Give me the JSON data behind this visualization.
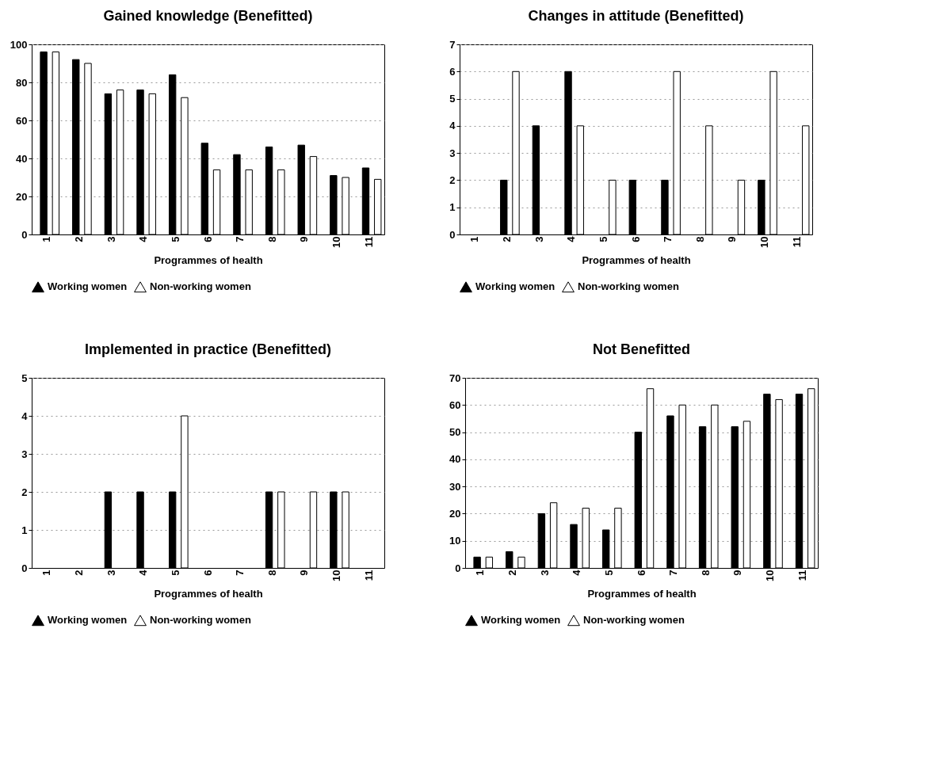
{
  "chart_data": [
    {
      "type": "bar",
      "title": "Gained knowledge (Benefitted)",
      "xlabel": "Programmes of health",
      "categories": [
        "1",
        "2",
        "3",
        "4",
        "5",
        "6",
        "7",
        "8",
        "9",
        "10",
        "11"
      ],
      "series": [
        {
          "name": "Working women",
          "color": "#000000",
          "values": [
            96,
            92,
            74,
            76,
            84,
            48,
            42,
            46,
            47,
            31,
            35
          ]
        },
        {
          "name": "Non-working women",
          "color": "#ffffff",
          "values": [
            96,
            90,
            76,
            74,
            72,
            34,
            34,
            34,
            41,
            30,
            29
          ]
        }
      ],
      "ylim": [
        0,
        100
      ],
      "yticks": [
        0,
        20,
        40,
        60,
        80,
        100
      ],
      "grid": "y",
      "legend": "bottom"
    },
    {
      "type": "bar",
      "title": "Changes in attitude (Benefitted)",
      "xlabel": "Programmes of health",
      "categories": [
        "1",
        "2",
        "3",
        "4",
        "5",
        "6",
        "7",
        "8",
        "9",
        "10",
        "11"
      ],
      "series": [
        {
          "name": "Working women",
          "color": "#000000",
          "values": [
            0,
            2,
            4,
            6,
            0,
            2,
            2,
            0,
            0,
            2,
            0
          ]
        },
        {
          "name": "Non-working women",
          "color": "#ffffff",
          "values": [
            0,
            6,
            0,
            4,
            2,
            0,
            6,
            4,
            2,
            6,
            4
          ]
        }
      ],
      "ylim": [
        0,
        7
      ],
      "yticks": [
        0,
        1,
        2,
        3,
        4,
        5,
        6,
        7
      ],
      "grid": "y",
      "legend": "bottom"
    },
    {
      "type": "bar",
      "title": "Implemented in practice (Benefitted)",
      "xlabel": "Programmes of health",
      "categories": [
        "1",
        "2",
        "3",
        "4",
        "5",
        "6",
        "7",
        "8",
        "9",
        "10",
        "11"
      ],
      "series": [
        {
          "name": "Working women",
          "color": "#000000",
          "values": [
            0,
            0,
            2,
            2,
            2,
            0,
            0,
            2,
            0,
            2,
            0
          ]
        },
        {
          "name": "Non-working women",
          "color": "#ffffff",
          "values": [
            0,
            0,
            0,
            0,
            4,
            0,
            0,
            2,
            2,
            2,
            0
          ]
        }
      ],
      "ylim": [
        0,
        5
      ],
      "yticks": [
        0,
        1,
        2,
        3,
        4,
        5
      ],
      "grid": "y",
      "legend": "bottom"
    },
    {
      "type": "bar",
      "title": "Not Benefitted",
      "xlabel": "Programmes of health",
      "categories": [
        "1",
        "2",
        "3",
        "4",
        "5",
        "6",
        "7",
        "8",
        "9",
        "10",
        "11"
      ],
      "series": [
        {
          "name": "Working women",
          "color": "#000000",
          "values": [
            4,
            6,
            20,
            16,
            14,
            50,
            56,
            52,
            52,
            64,
            64
          ]
        },
        {
          "name": "Non-working women",
          "color": "#ffffff",
          "values": [
            4,
            4,
            24,
            22,
            22,
            66,
            60,
            60,
            54,
            62,
            66
          ]
        }
      ],
      "ylim": [
        0,
        70
      ],
      "yticks": [
        0,
        10,
        20,
        30,
        40,
        50,
        60,
        70
      ],
      "grid": "y",
      "legend": "bottom"
    }
  ]
}
